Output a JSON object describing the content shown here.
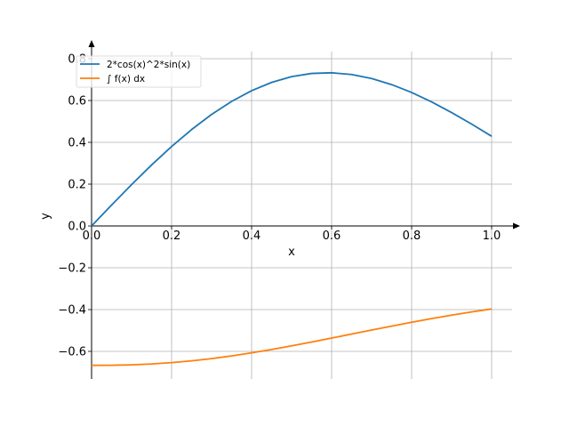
{
  "chart_data": {
    "type": "line",
    "xlabel": "x",
    "ylabel": "y",
    "xlim": [
      0.0,
      1.05
    ],
    "ylim": [
      -0.74,
      0.84
    ],
    "grid": true,
    "legend_position": "top-left",
    "x_ticks": [
      0.0,
      0.2,
      0.4,
      0.6,
      0.8,
      1.0
    ],
    "x_tick_labels": [
      "0.0",
      "0.2",
      "0.4",
      "0.6",
      "0.8",
      "1.0"
    ],
    "y_ticks": [
      -0.6,
      -0.4,
      -0.2,
      0.0,
      0.2,
      0.4,
      0.6,
      0.8
    ],
    "y_tick_labels": [
      "−0.6",
      "−0.4",
      "−0.2",
      "0.0",
      "0.2",
      "0.4",
      "0.6",
      "0.8"
    ],
    "series": [
      {
        "name": "2*cos(x)^2*sin(x)",
        "color": "#1f77b4",
        "x": [
          0.0,
          0.05,
          0.1,
          0.15,
          0.2,
          0.25,
          0.3,
          0.35,
          0.4,
          0.45,
          0.5,
          0.55,
          0.6,
          0.65,
          0.7,
          0.75,
          0.8,
          0.85,
          0.9,
          0.95,
          1.0
        ],
        "y": [
          0.0,
          0.0998,
          0.1977,
          0.2917,
          0.38,
          0.4611,
          0.5334,
          0.5957,
          0.647,
          0.6867,
          0.7142,
          0.7295,
          0.7327,
          0.7244,
          0.7052,
          0.6762,
          0.6385,
          0.5934,
          0.5424,
          0.4871,
          0.429
        ]
      },
      {
        "name": "∫ f(x) dx",
        "color": "#ff7f0e",
        "x": [
          0.0,
          0.05,
          0.1,
          0.15,
          0.2,
          0.25,
          0.3,
          0.35,
          0.4,
          0.45,
          0.5,
          0.55,
          0.6,
          0.65,
          0.7,
          0.75,
          0.8,
          0.85,
          0.9,
          0.95,
          1.0
        ],
        "y": [
          -0.6667,
          -0.6664,
          -0.6642,
          -0.6601,
          -0.6538,
          -0.6452,
          -0.6345,
          -0.6216,
          -0.607,
          -0.5909,
          -0.5735,
          -0.5552,
          -0.5364,
          -0.5172,
          -0.498,
          -0.4791,
          -0.4607,
          -0.4431,
          -0.4265,
          -0.4111,
          -0.3971
        ]
      }
    ]
  }
}
